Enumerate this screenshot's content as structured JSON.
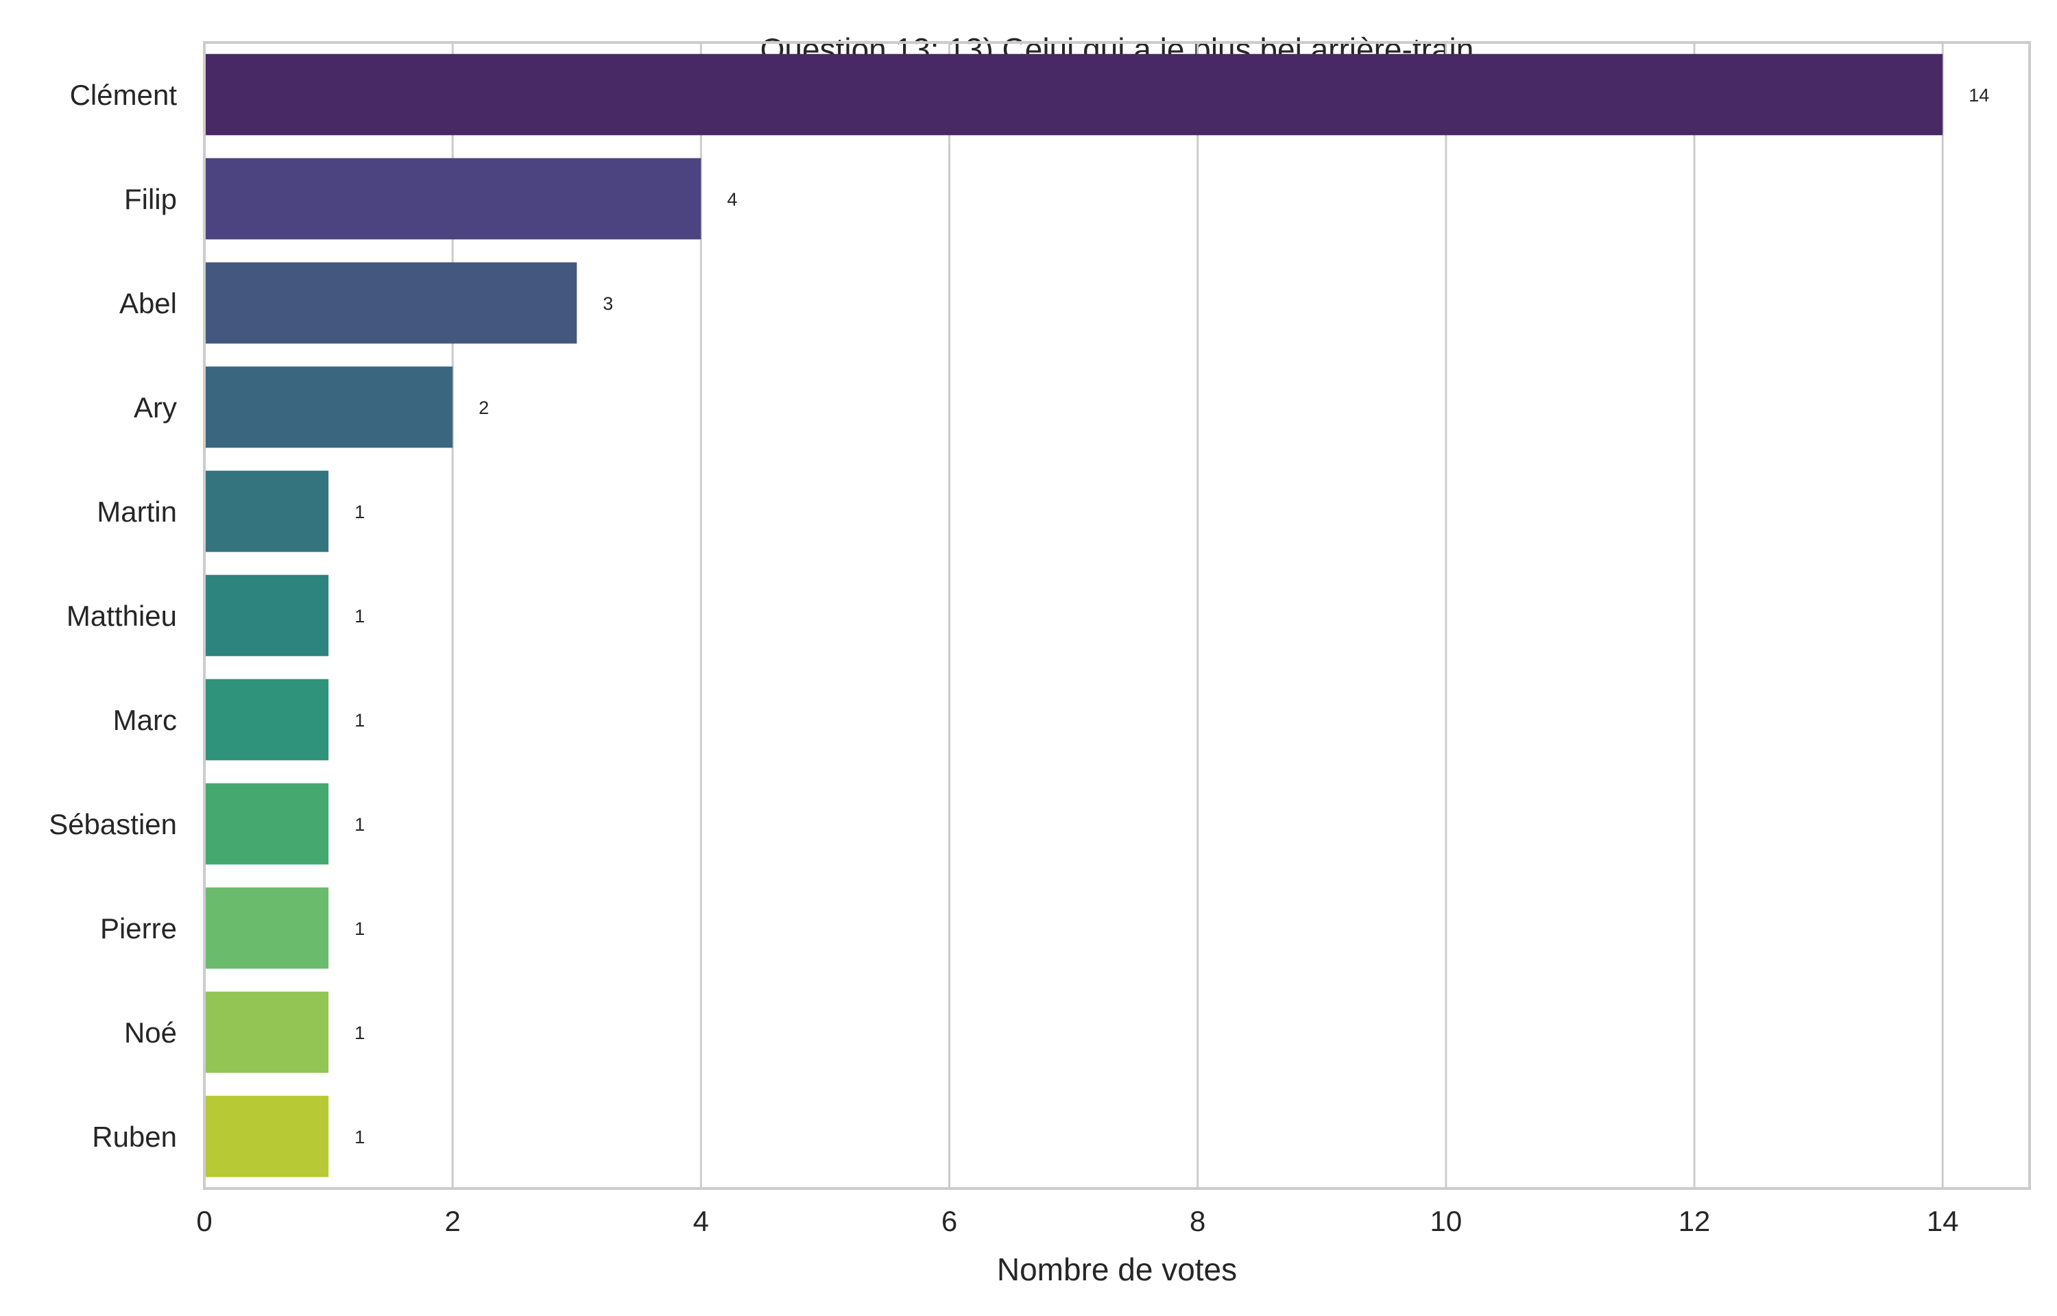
{
  "chart_data": {
    "type": "bar",
    "orientation": "horizontal",
    "title": "Question 13: 13) Celui qui a le plus bel arrière-train",
    "xlabel": "Nombre de votes",
    "ylabel": "",
    "xlim": [
      0,
      14.7
    ],
    "xticks": [
      0,
      2,
      4,
      6,
      8,
      10,
      12,
      14
    ],
    "grid": true,
    "categories": [
      "Clément",
      "Filip",
      "Abel",
      "Ary",
      "Martin",
      "Matthieu",
      "Marc",
      "Sébastien",
      "Pierre",
      "Noé",
      "Ruben"
    ],
    "values": [
      14,
      4,
      3,
      2,
      1,
      1,
      1,
      1,
      1,
      1,
      1
    ],
    "colors": [
      "#482865",
      "#4b4480",
      "#44587f",
      "#3b667f",
      "#34747f",
      "#2d837e",
      "#2f937c",
      "#45a86f",
      "#6bbb6c",
      "#93c554",
      "#b7c934"
    ]
  }
}
